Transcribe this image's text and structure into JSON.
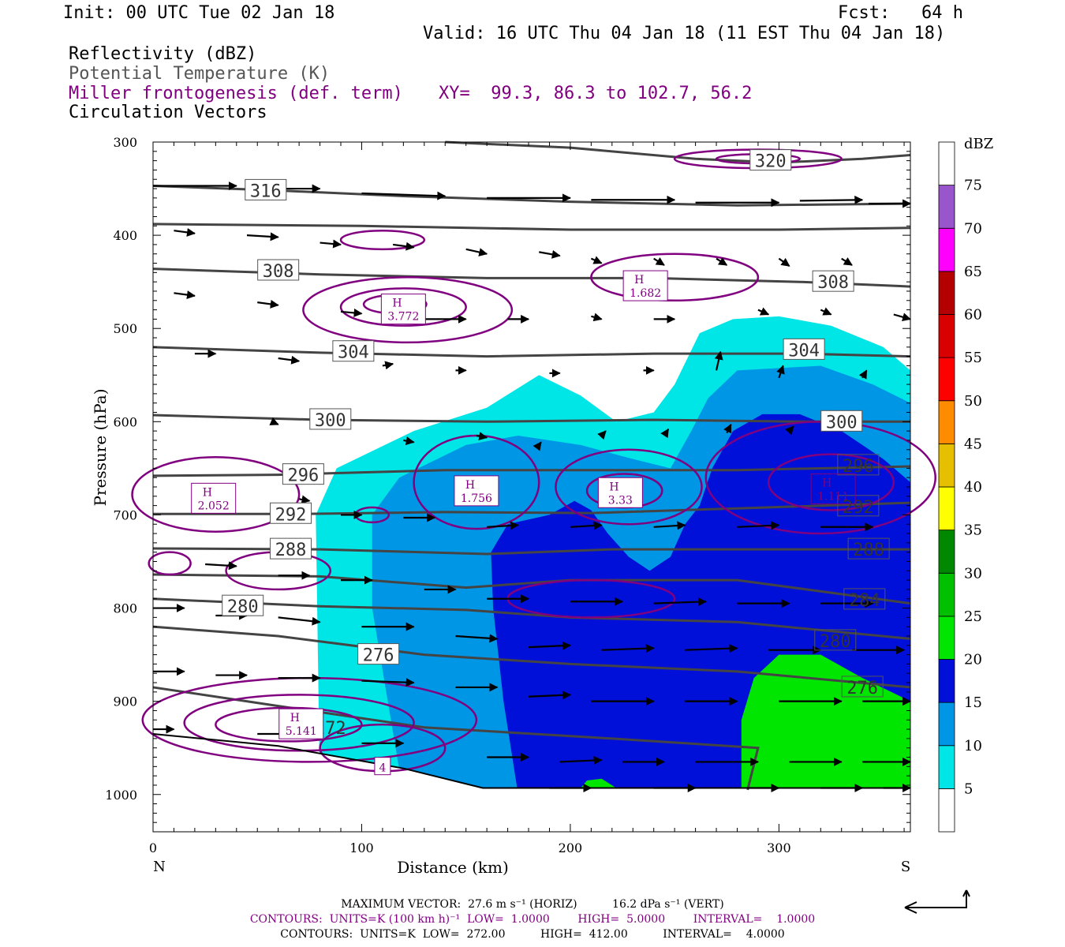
{
  "header": {
    "init": "Init: 00 UTC Tue 02 Jan 18",
    "fcst": "Fcst:   64 h",
    "valid": "Valid: 16 UTC Thu 04 Jan 18 (11 EST Thu 04 Jan 18)",
    "field1": "Reflectivity (dBZ)",
    "field2": "Potential Temperature (K)",
    "field3": "Miller frontogenesis (def. term)",
    "xy": "XY=  99.3, 86.3 to 102.7, 56.2",
    "field4": "Circulation Vectors"
  },
  "footer": {
    "max_vector": "MAXIMUM VECTOR:  27.6 m s⁻¹ (HORIZ)          16.2 dPa s⁻¹ (VERT)",
    "contours1": "CONTOURS:  UNITS=K (100 km h)⁻¹  LOW=  1.0000        HIGH=  5.0000        INTERVAL=    1.0000",
    "contours2": "CONTOURS:  UNITS=K  LOW=  272.00          HIGH=  412.00          INTERVAL=    4.0000"
  },
  "colors": {
    "theta": "#444444",
    "frontogenesis": "#800080",
    "dbz_5": "#00e6e6",
    "dbz_10": "#0096e6",
    "dbz_15": "#0010d8",
    "dbz_20": "#00e600"
  },
  "chart_data": {
    "type": "cross-section",
    "xlabel": "Distance (km)",
    "ylabel": "Pressure (hPa)",
    "x_range": [
      0,
      363
    ],
    "y_range": [
      1040,
      300
    ],
    "y_scale": "linear-reversed",
    "x_ticks": [
      0,
      100,
      200,
      300
    ],
    "y_ticks": [
      300,
      400,
      500,
      600,
      700,
      800,
      900,
      1000
    ],
    "x_end_labels": {
      "left": "N",
      "right": "S"
    },
    "colorbar": {
      "title": "dBZ",
      "levels": [
        5,
        10,
        15,
        20,
        25,
        30,
        35,
        40,
        45,
        50,
        55,
        60,
        65,
        70,
        75
      ],
      "colors": [
        "#ffffff",
        "#00e6e6",
        "#0096e6",
        "#0010d8",
        "#00e600",
        "#00c000",
        "#008800",
        "#ffff00",
        "#e6c000",
        "#ff8c00",
        "#ff0000",
        "#d80000",
        "#b40000",
        "#ff00ff",
        "#9955cc",
        "#ffffff"
      ]
    },
    "theta_contours": [
      {
        "value": 276,
        "label": "276"
      },
      {
        "value": 280,
        "label": "280"
      },
      {
        "value": 284,
        "label": "284"
      },
      {
        "value": 288,
        "label": "288"
      },
      {
        "value": 292,
        "label": "292"
      },
      {
        "value": 296,
        "label": "296"
      },
      {
        "value": 300,
        "label": "300"
      },
      {
        "value": 304,
        "label": "304"
      },
      {
        "value": 308,
        "label": "308"
      },
      {
        "value": 316,
        "label": "316"
      },
      {
        "value": 320,
        "label": "320"
      }
    ],
    "theta_label_extra": [
      "272",
      "4"
    ],
    "frontogenesis_maxima": [
      {
        "x": 120,
        "p": 480,
        "value": "3.772"
      },
      {
        "x": 236,
        "p": 455,
        "value": "1.682"
      },
      {
        "x": 29,
        "p": 683,
        "value": "2.052"
      },
      {
        "x": 155,
        "p": 675,
        "value": "1.756"
      },
      {
        "x": 224,
        "p": 677,
        "value": "3.33"
      },
      {
        "x": 326,
        "p": 673,
        "value": "1.111"
      },
      {
        "x": 71,
        "p": 925,
        "value": "5.141"
      }
    ],
    "terrain_p": [
      {
        "x": 0,
        "p": 935
      },
      {
        "x": 60,
        "p": 948
      },
      {
        "x": 120,
        "p": 972
      },
      {
        "x": 158,
        "p": 993
      },
      {
        "x": 363,
        "p": 993
      }
    ]
  }
}
